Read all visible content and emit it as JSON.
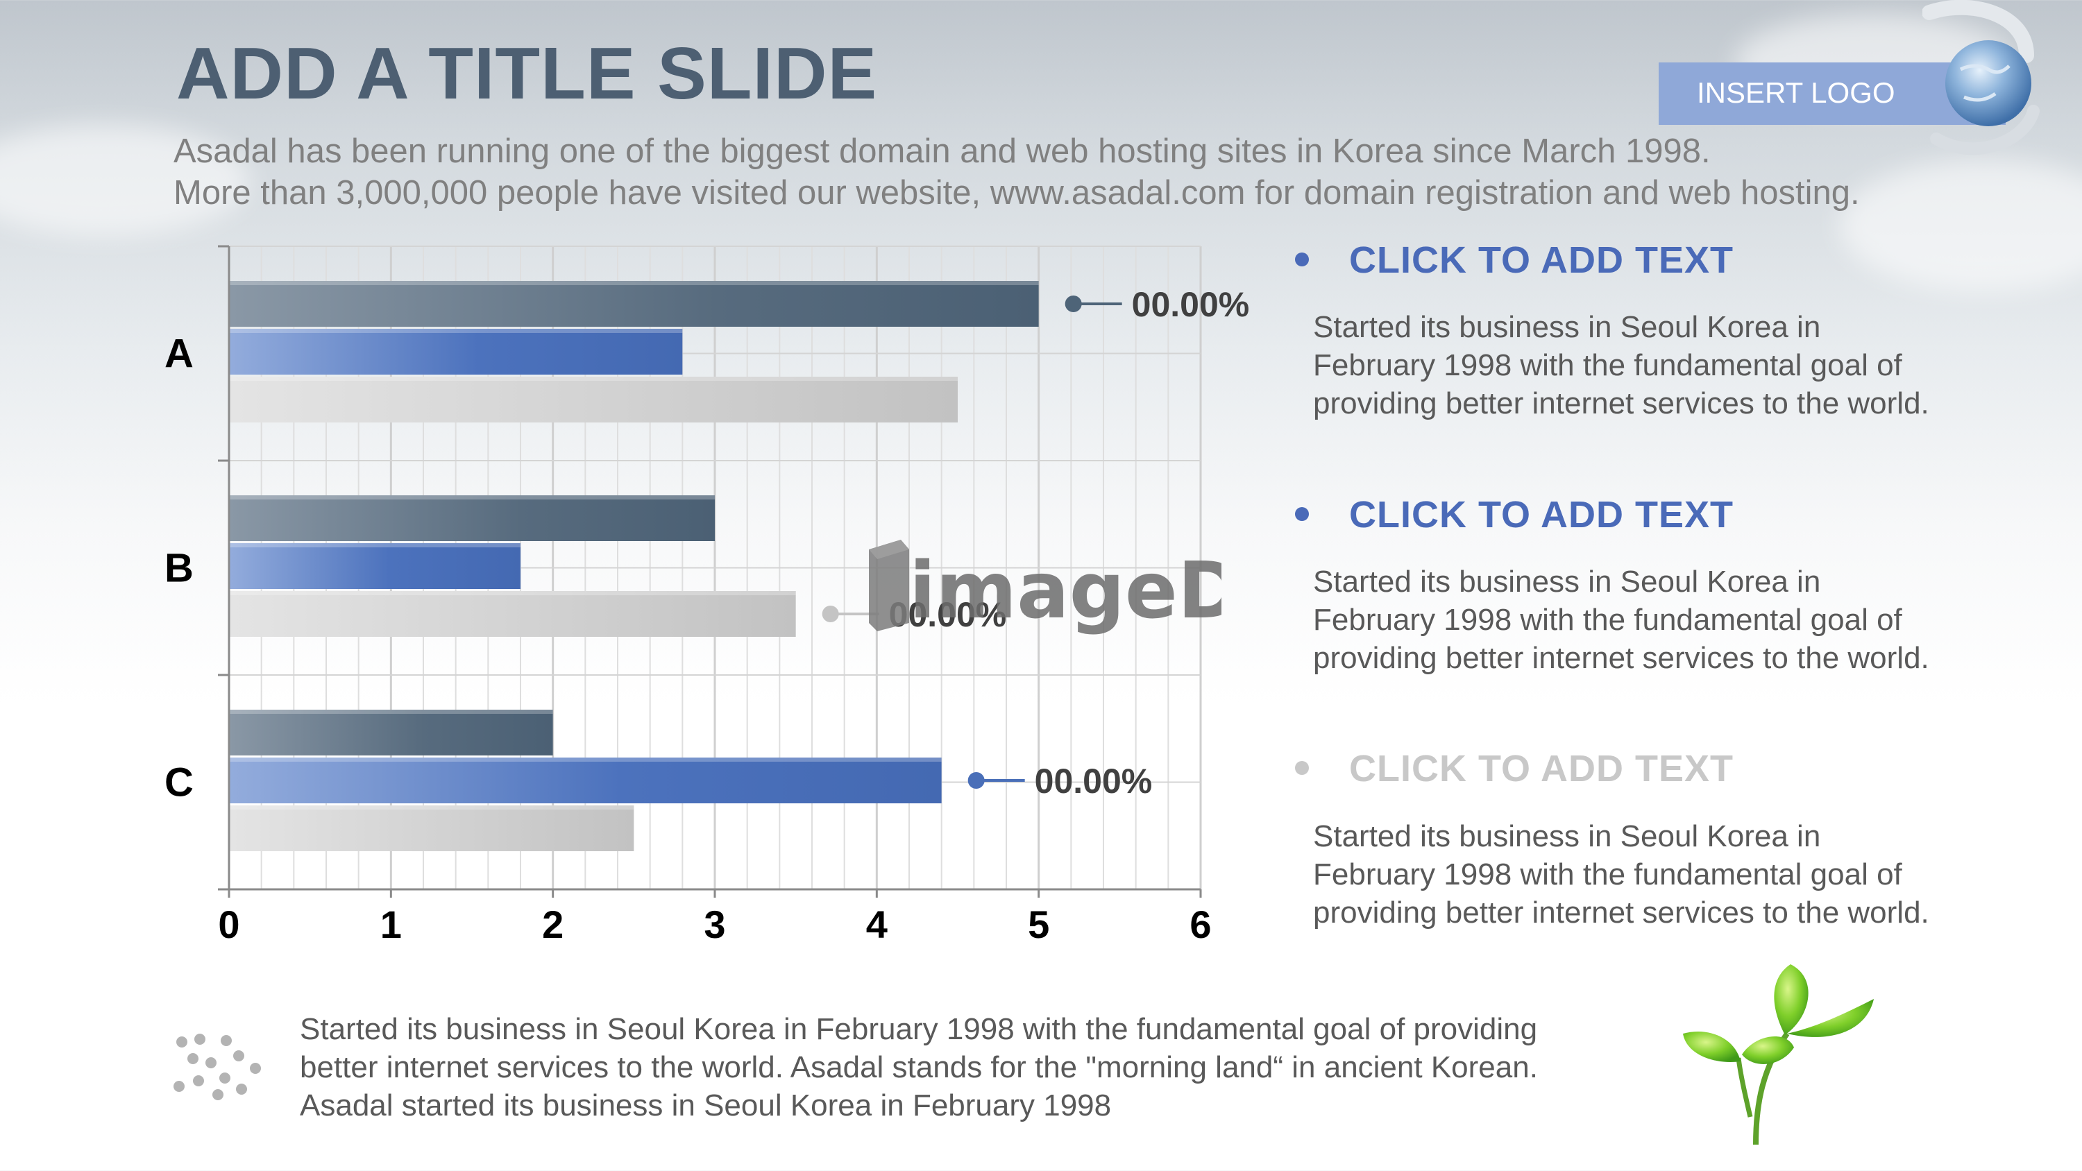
{
  "slide": {
    "title": "ADD A TITLE SLIDE",
    "subtitle_line1": "Asadal has been running one of the biggest domain and web hosting sites in Korea since March 1998.",
    "subtitle_line2": "More than 3,000,000 people have visited our website,  www.asadal.com for domain registration and web hosting.",
    "logo_label": "INSERT LOGO",
    "watermark": "imageDJ"
  },
  "bullets": [
    {
      "heading": "CLICK TO ADD TEXT",
      "body": "Started its business in Seoul Korea  in February 1998 with the fundamental goal of providing better internet services to the world.",
      "color": "#4a6ab8"
    },
    {
      "heading": "CLICK TO ADD TEXT",
      "body": "Started its business in Seoul Korea  in February 1998 with the fundamental goal of providing better internet services to the world.",
      "color": "#4a6ab8"
    },
    {
      "heading": "CLICK TO ADD TEXT",
      "body": "Started its business in Seoul Korea  in February 1998 with the fundamental goal of providing better internet services to the world.",
      "color": "#c8c8c8"
    }
  ],
  "footer": {
    "text": "Started its business in Seoul Korea  in February 1998 with the fundamental goal of providing better internet services to the world. Asadal stands for the \"morning land“ in ancient Korean. Asadal started its business in Seoul Korea  in February 1998"
  },
  "chart_data": {
    "type": "bar",
    "orientation": "horizontal",
    "categories": [
      "A",
      "B",
      "C"
    ],
    "series": [
      {
        "values": [
          5,
          3,
          2
        ],
        "color": "#4e6478"
      },
      {
        "values": [
          2.8,
          1.8,
          4.4
        ],
        "color": "#4a6fb8"
      },
      {
        "values": [
          4.5,
          3.5,
          2.5
        ],
        "color": "#c4c4c4"
      }
    ],
    "xlim": [
      0,
      6
    ],
    "xticks": [
      "0",
      "1",
      "2",
      "3",
      "4",
      "5",
      "6"
    ],
    "grid": true,
    "annotations": [
      {
        "category": "A",
        "series": 0,
        "label": "00.00%",
        "color": "#4e6478"
      },
      {
        "category": "B",
        "series": 2,
        "label": "00.00%",
        "color": "#c4c4c4"
      },
      {
        "category": "C",
        "series": 1,
        "label": "00.00%",
        "color": "#4a6fb8"
      }
    ]
  }
}
